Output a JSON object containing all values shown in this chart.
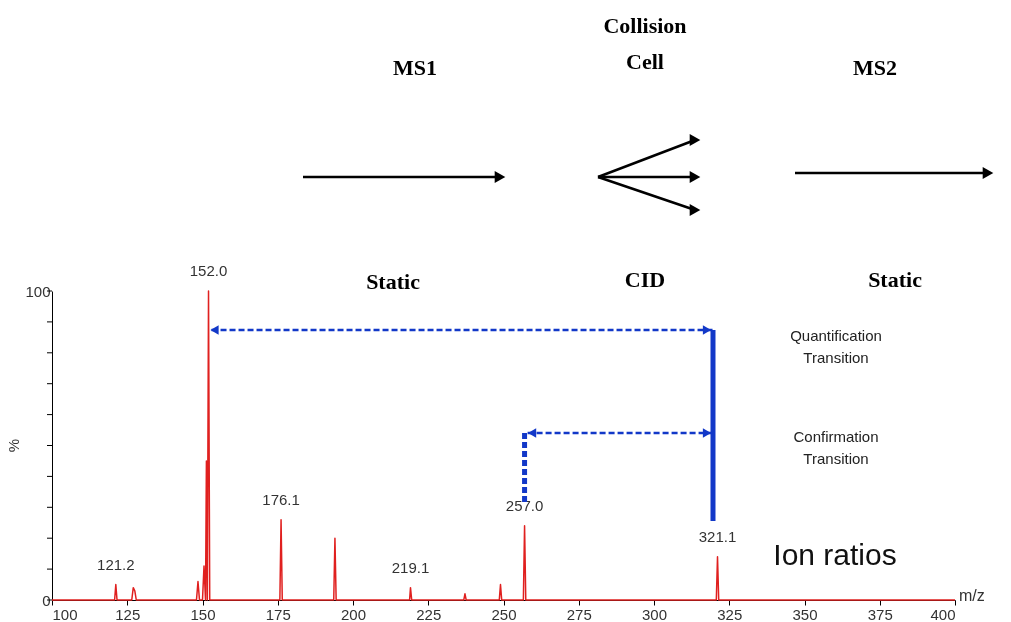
{
  "chart_data": {
    "type": "line",
    "xlabel": "m/z",
    "ylabel": "%",
    "x": [
      100,
      120.8,
      121.2,
      121.6,
      126.5,
      127,
      127.5,
      128,
      148,
      148.5,
      149,
      150,
      150.5,
      151,
      151.3,
      151.6,
      152.0,
      152.4,
      175.7,
      176.1,
      176.5,
      193.6,
      194,
      194.4,
      218.8,
      219.1,
      219.5,
      236.8,
      237.2,
      237.6,
      248.6,
      249,
      249.4,
      256.6,
      257.0,
      257.4,
      320.7,
      321.1,
      321.5,
      400
    ],
    "series": [
      {
        "color": "#e0201f",
        "values": [
          0,
          0,
          5,
          0,
          0,
          4,
          3,
          0,
          0,
          6,
          0,
          0,
          11,
          0,
          45,
          0,
          100,
          0,
          0,
          26,
          0,
          0,
          20,
          0,
          0,
          4,
          0,
          0,
          2,
          0,
          0,
          5,
          0,
          0,
          24,
          0,
          0,
          14,
          0,
          0
        ]
      }
    ],
    "xlim": [
      100,
      400
    ],
    "xticks": [
      100,
      125,
      150,
      175,
      200,
      225,
      250,
      275,
      300,
      325,
      350,
      375,
      400
    ],
    "ylim": [
      0,
      100
    ],
    "yticks": [
      0,
      {
        "value": 10,
        "label": null
      },
      {
        "value": 20,
        "label": null
      },
      {
        "value": 30,
        "label": null
      },
      {
        "value": 40,
        "label": null
      },
      {
        "value": 50,
        "label": null
      },
      {
        "value": 60,
        "label": null
      },
      {
        "value": 70,
        "label": null
      },
      {
        "value": 80,
        "label": null
      },
      {
        "value": 90,
        "label": null
      },
      100
    ],
    "grid": false,
    "marker": "none",
    "line_style": "solid",
    "annotations": [
      "MS1",
      "Collision Cell",
      "MS2",
      "Static",
      "CID",
      "Static",
      {
        "text": "152.0",
        "x": 152.0,
        "y": 100
      },
      {
        "text": "257.0",
        "x": 257.0,
        "y": 24
      },
      {
        "text": "321.1",
        "x": 321.1,
        "y": 14
      },
      {
        "text": "121.2",
        "x": 121.2,
        "y": 5
      },
      {
        "text": "176.1",
        "x": 176.1,
        "y": 26
      },
      {
        "text": "219.1",
        "x": 219.1,
        "y": 4
      },
      "Quantification Transition",
      "Confirmation Transition",
      "Ion ratios"
    ]
  }
}
